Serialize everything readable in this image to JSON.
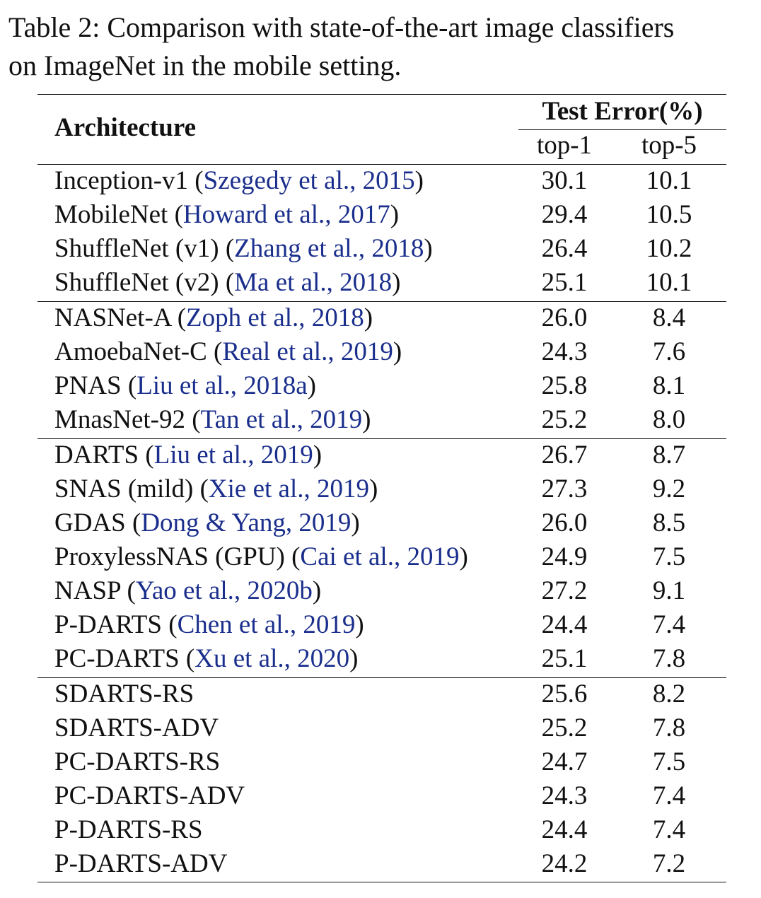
{
  "caption": {
    "line1": "Table 2: Comparison with state-of-the-art image classifiers",
    "line2": "on ImageNet in the mobile setting."
  },
  "header": {
    "architecture": "Architecture",
    "test_error": "Test Error(%)",
    "top1": "top-1",
    "top5": "top-5"
  },
  "colors": {
    "citation": "#1a2e8c",
    "text": "#111111"
  },
  "rows": [
    {
      "name": "Inception-v1",
      "cite": "Szegedy et al., 2015",
      "top1": "30.1",
      "top5": "10.1"
    },
    {
      "name": "MobileNet",
      "cite": "Howard et al., 2017",
      "top1": "29.4",
      "top5": "10.5"
    },
    {
      "name": "ShuffleNet (v1)",
      "cite": "Zhang et al., 2018",
      "top1": "26.4",
      "top5": "10.2"
    },
    {
      "name": "ShuffleNet (v2)",
      "cite": "Ma et al., 2018",
      "top1": "25.1",
      "top5": "10.1"
    },
    {
      "name": "NASNet-A",
      "cite": "Zoph et al., 2018",
      "top1": "26.0",
      "top5": "8.4"
    },
    {
      "name": "AmoebaNet-C",
      "cite": "Real et al., 2019",
      "top1": "24.3",
      "top5": "7.6"
    },
    {
      "name": "PNAS",
      "cite": "Liu et al., 2018a",
      "top1": "25.8",
      "top5": "8.1"
    },
    {
      "name": "MnasNet-92",
      "cite": "Tan et al., 2019",
      "top1": "25.2",
      "top5": "8.0"
    },
    {
      "name": "DARTS",
      "cite": "Liu et al., 2019",
      "top1": "26.7",
      "top5": "8.7"
    },
    {
      "name": "SNAS (mild)",
      "cite": "Xie et al., 2019",
      "top1": "27.3",
      "top5": "9.2"
    },
    {
      "name": "GDAS",
      "cite": "Dong & Yang, 2019",
      "top1": "26.0",
      "top5": "8.5"
    },
    {
      "name": "ProxylessNAS (GPU)",
      "cite": "Cai et al., 2019",
      "top1": "24.9",
      "top5": "7.5"
    },
    {
      "name": "NASP",
      "cite": "Yao et al., 2020b",
      "top1": "27.2",
      "top5": "9.1"
    },
    {
      "name": "P-DARTS",
      "cite": "Chen et al., 2019",
      "top1": "24.4",
      "top5": "7.4"
    },
    {
      "name": "PC-DARTS",
      "cite": "Xu et al., 2020",
      "top1": "25.1",
      "top5": "7.8"
    },
    {
      "name": "SDARTS-RS",
      "cite": "",
      "top1": "25.6",
      "top5": "8.2"
    },
    {
      "name": "SDARTS-ADV",
      "cite": "",
      "top1": "25.2",
      "top5": "7.8"
    },
    {
      "name": "PC-DARTS-RS",
      "cite": "",
      "top1": "24.7",
      "top5": "7.5"
    },
    {
      "name": "PC-DARTS-ADV",
      "cite": "",
      "top1": "24.3",
      "top5": "7.4"
    },
    {
      "name": "P-DARTS-RS",
      "cite": "",
      "top1": "24.4",
      "top5": "7.4"
    },
    {
      "name": "P-DARTS-ADV",
      "cite": "",
      "top1": "24.2",
      "top5": "7.2"
    }
  ]
}
